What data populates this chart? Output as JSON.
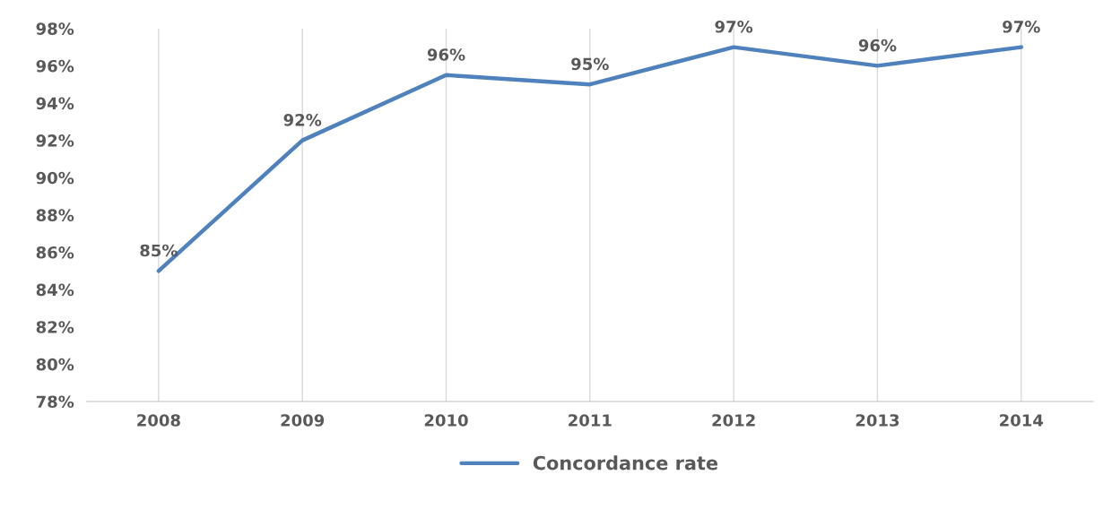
{
  "chart_data": {
    "type": "line",
    "categories": [
      "2008",
      "2009",
      "2010",
      "2011",
      "2012",
      "2013",
      "2014"
    ],
    "series": [
      {
        "name": "Concordance rate",
        "color": "#4f81bd",
        "values": [
          85,
          92,
          95.5,
          95,
          97,
          96,
          97
        ],
        "value_labels": [
          "85%",
          "92%",
          "96%",
          "95%",
          "97%",
          "96%",
          "97%"
        ]
      }
    ],
    "ylim": [
      78,
      98
    ],
    "yticks": [
      {
        "value": 78,
        "label": "78%"
      },
      {
        "value": 80,
        "label": "80%"
      },
      {
        "value": 82,
        "label": "82%"
      },
      {
        "value": 84,
        "label": "84%"
      },
      {
        "value": 86,
        "label": "86%"
      },
      {
        "value": 88,
        "label": "88%"
      },
      {
        "value": 90,
        "label": "90%"
      },
      {
        "value": 92,
        "label": "92%"
      },
      {
        "value": 94,
        "label": "94%"
      },
      {
        "value": 96,
        "label": "96%"
      },
      {
        "value": 98,
        "label": "98%"
      }
    ],
    "grid": "x",
    "legend": "bottom",
    "marker": "none",
    "line_style": "solid"
  }
}
